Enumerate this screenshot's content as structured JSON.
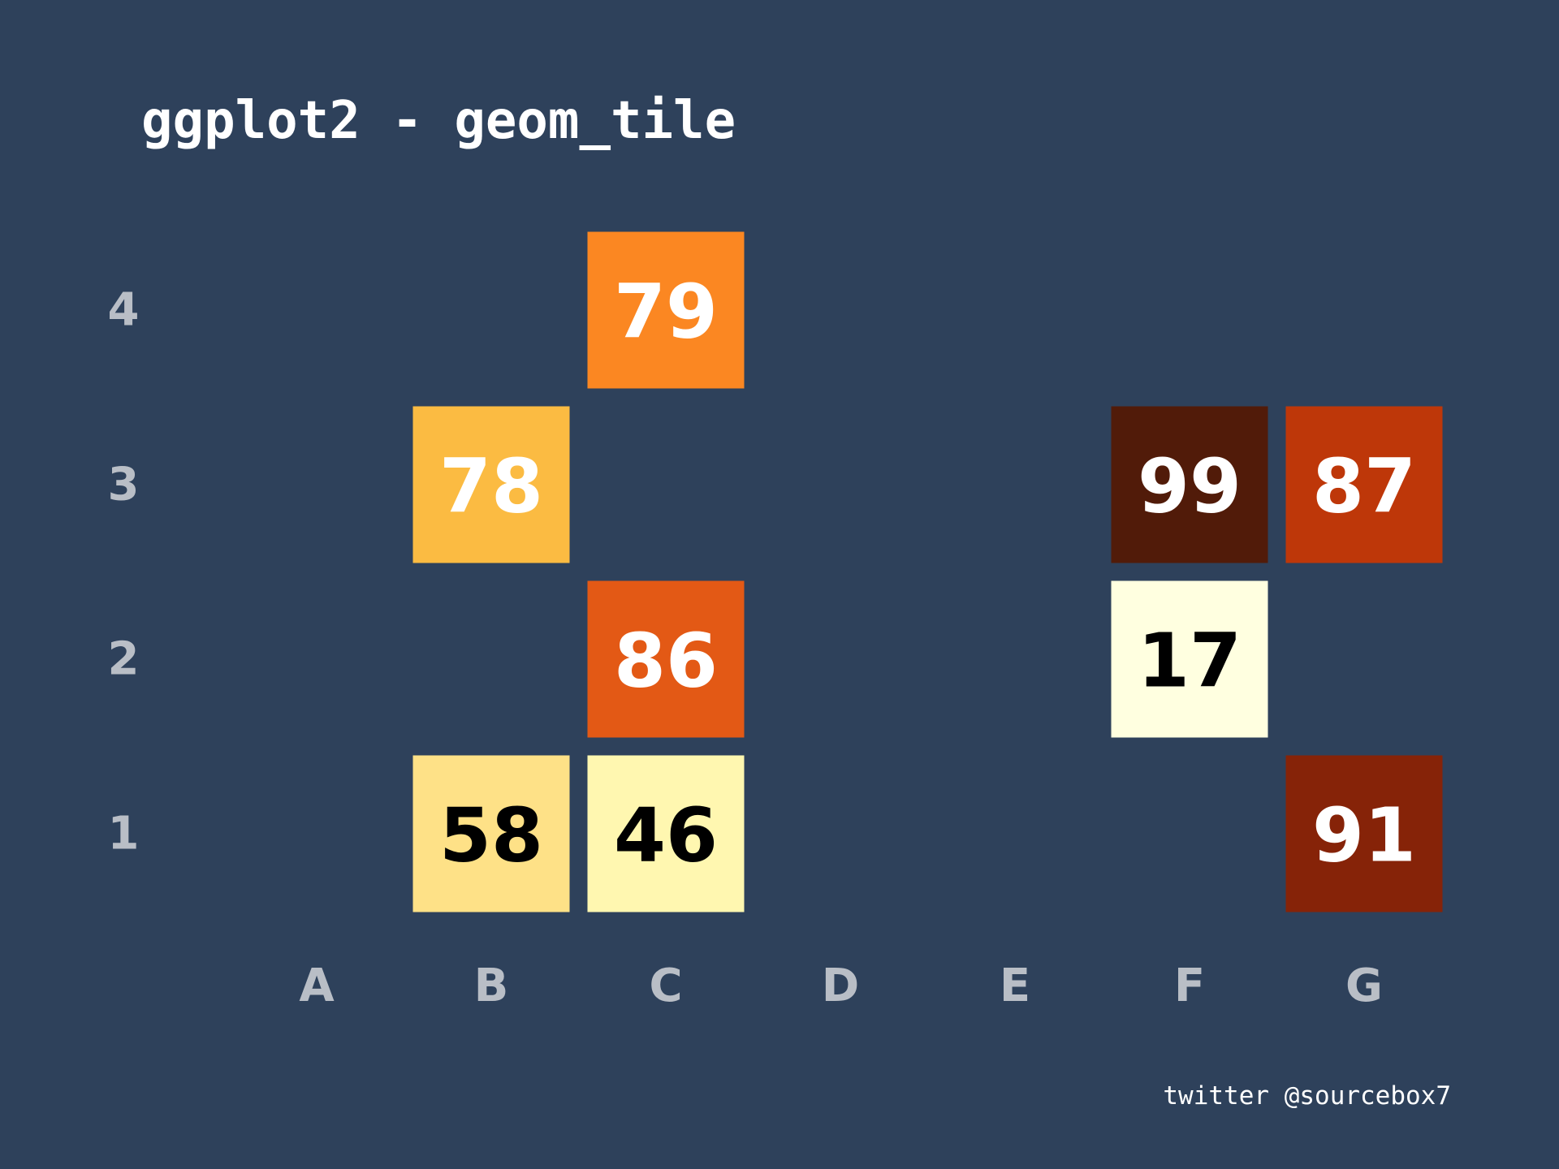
{
  "chart_data": {
    "type": "heatmap",
    "title": "ggplot2 - geom_tile",
    "caption": "twitter @sourcebox7",
    "x_categories": [
      "A",
      "B",
      "C",
      "D",
      "E",
      "F",
      "G"
    ],
    "y_categories": [
      "1",
      "2",
      "3",
      "4"
    ],
    "cells": [
      {
        "x": "B",
        "y": "1",
        "value": 58,
        "color": "#fee187",
        "text_color": "#000000"
      },
      {
        "x": "C",
        "y": "1",
        "value": 46,
        "color": "#fff7b0",
        "text_color": "#000000"
      },
      {
        "x": "G",
        "y": "1",
        "value": 91,
        "color": "#862308",
        "text_color": "#ffffff"
      },
      {
        "x": "C",
        "y": "2",
        "value": 86,
        "color": "#e35915",
        "text_color": "#ffffff"
      },
      {
        "x": "F",
        "y": "2",
        "value": 17,
        "color": "#ffffe0",
        "text_color": "#000000"
      },
      {
        "x": "B",
        "y": "3",
        "value": 78,
        "color": "#fbbb42",
        "text_color": "#ffffff"
      },
      {
        "x": "F",
        "y": "3",
        "value": 99,
        "color": "#511b09",
        "text_color": "#ffffff"
      },
      {
        "x": "G",
        "y": "3",
        "value": 87,
        "color": "#be3709",
        "text_color": "#ffffff"
      },
      {
        "x": "C",
        "y": "4",
        "value": 79,
        "color": "#fb8722",
        "text_color": "#ffffff"
      }
    ],
    "legend": "none",
    "grid": false
  },
  "colors": {
    "background": "#2e415b",
    "tick_text": "#b9bec6",
    "title_text": "#ffffff"
  }
}
